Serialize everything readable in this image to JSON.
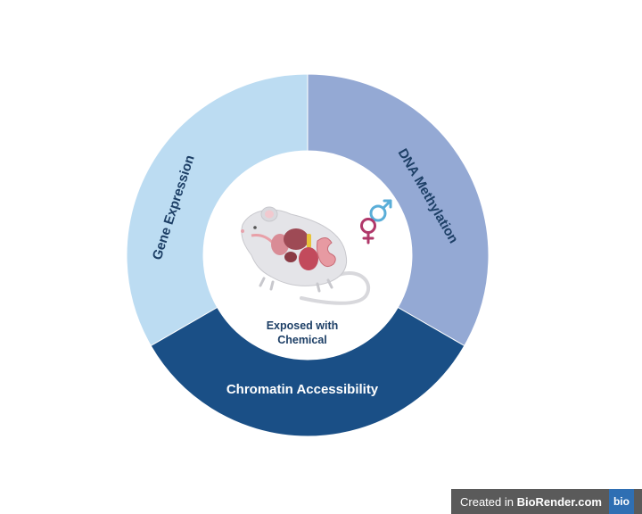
{
  "segments": [
    {
      "id": "gene-expression",
      "label": "Gene Expression",
      "color": "#bcdcf2",
      "text_color": "#1d3f66"
    },
    {
      "id": "dna-methylation",
      "label": "DNA Methylation",
      "color": "#94a9d4",
      "text_color": "#1d3f66"
    },
    {
      "id": "chromatin-accessibility",
      "label": "Chromatin Accessibility",
      "color": "#1a4f86",
      "text_color": "#ffffff"
    }
  ],
  "center": {
    "caption_line1": "Exposed with",
    "caption_line2": "Chemical",
    "male_symbol_color": "#5aaed8",
    "female_symbol_color": "#b0386a"
  },
  "watermark": {
    "prefix": "Created in ",
    "brand": "BioRender.com",
    "logo": "bio"
  }
}
